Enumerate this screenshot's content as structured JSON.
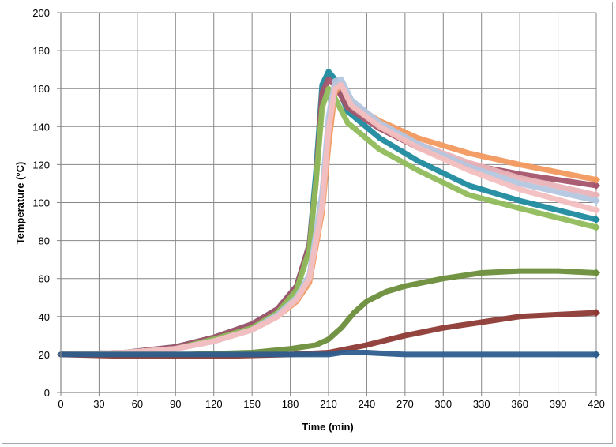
{
  "chart_data": {
    "type": "line",
    "xlabel": "Time (min)",
    "ylabel": "Temperature (°C)",
    "xlim": [
      0,
      420
    ],
    "ylim": [
      0,
      200
    ],
    "xticks": [
      0,
      30,
      60,
      90,
      120,
      150,
      180,
      210,
      240,
      270,
      300,
      330,
      360,
      390,
      420
    ],
    "yticks": [
      0,
      20,
      40,
      60,
      80,
      100,
      120,
      140,
      160,
      180,
      200
    ],
    "grid": true,
    "legend": "none",
    "series": [
      {
        "color": "#1F8A9E",
        "x": [
          0,
          50,
          90,
          120,
          150,
          170,
          185,
          195,
          200,
          205,
          210,
          215,
          225,
          250,
          280,
          320,
          360,
          420
        ],
        "y": [
          20,
          21,
          24,
          29,
          36,
          44,
          56,
          78,
          115,
          162,
          169,
          165,
          148,
          134,
          122,
          109,
          101,
          91
        ]
      },
      {
        "color": "#A4556B",
        "x": [
          0,
          50,
          90,
          120,
          150,
          170,
          185,
          195,
          200,
          205,
          210,
          215,
          225,
          250,
          280,
          320,
          360,
          420
        ],
        "y": [
          20,
          21,
          24,
          29,
          36,
          44,
          56,
          78,
          110,
          158,
          165,
          162,
          150,
          139,
          129,
          120,
          115,
          109
        ]
      },
      {
        "color": "#F2995E",
        "x": [
          0,
          50,
          90,
          120,
          150,
          170,
          185,
          195,
          205,
          210,
          215,
          220,
          228,
          250,
          280,
          320,
          360,
          420
        ],
        "y": [
          20,
          21,
          23,
          27,
          33,
          40,
          48,
          58,
          95,
          130,
          158,
          162,
          152,
          143,
          134,
          126,
          120,
          112
        ]
      },
      {
        "color": "#8FBC5A",
        "x": [
          0,
          50,
          90,
          120,
          150,
          170,
          185,
          195,
          200,
          205,
          210,
          215,
          225,
          250,
          280,
          320,
          360,
          420
        ],
        "y": [
          20,
          21,
          23,
          28,
          34,
          42,
          54,
          75,
          110,
          150,
          160,
          155,
          142,
          128,
          117,
          104,
          97,
          87
        ]
      },
      {
        "color": "#E9B3B8",
        "x": [
          0,
          50,
          90,
          120,
          150,
          170,
          185,
          195,
          205,
          210,
          215,
          220,
          228,
          250,
          280,
          320,
          360,
          420
        ],
        "y": [
          20,
          21,
          23,
          27,
          33,
          40,
          49,
          60,
          100,
          140,
          162,
          163,
          152,
          141,
          131,
          121,
          113,
          104
        ]
      },
      {
        "color": "#B4C7E0",
        "x": [
          0,
          50,
          90,
          120,
          150,
          170,
          185,
          195,
          205,
          210,
          215,
          220,
          228,
          250,
          280,
          320,
          360,
          420
        ],
        "y": [
          20,
          21,
          23,
          27,
          33,
          41,
          50,
          62,
          105,
          145,
          164,
          165,
          154,
          142,
          131,
          119,
          110,
          101
        ]
      },
      {
        "color": "#F3BFBF",
        "x": [
          0,
          50,
          90,
          120,
          150,
          170,
          185,
          195,
          205,
          210,
          215,
          220,
          228,
          250,
          280,
          320,
          360,
          420
        ],
        "y": [
          20,
          21,
          23,
          27,
          33,
          40,
          49,
          60,
          98,
          138,
          160,
          162,
          151,
          140,
          129,
          117,
          107,
          96
        ]
      },
      {
        "color": "#6B8E3A",
        "x": [
          0,
          60,
          100,
          150,
          180,
          200,
          210,
          220,
          230,
          240,
          255,
          270,
          300,
          330,
          360,
          390,
          420
        ],
        "y": [
          20,
          20,
          20,
          21,
          23,
          25,
          28,
          34,
          42,
          48,
          53,
          56,
          60,
          63,
          64,
          64,
          63
        ]
      },
      {
        "color": "#8E3A34",
        "x": [
          0,
          60,
          120,
          180,
          210,
          240,
          270,
          300,
          330,
          360,
          390,
          420
        ],
        "y": [
          20,
          19,
          19,
          20,
          21,
          25,
          30,
          34,
          37,
          40,
          41,
          42
        ]
      },
      {
        "color": "#2E5E8E",
        "x": [
          0,
          60,
          120,
          180,
          210,
          220,
          240,
          270,
          300,
          330,
          360,
          390,
          420
        ],
        "y": [
          20,
          20,
          20,
          20,
          20,
          21,
          21,
          20,
          20,
          20,
          20,
          20,
          20
        ]
      }
    ]
  }
}
